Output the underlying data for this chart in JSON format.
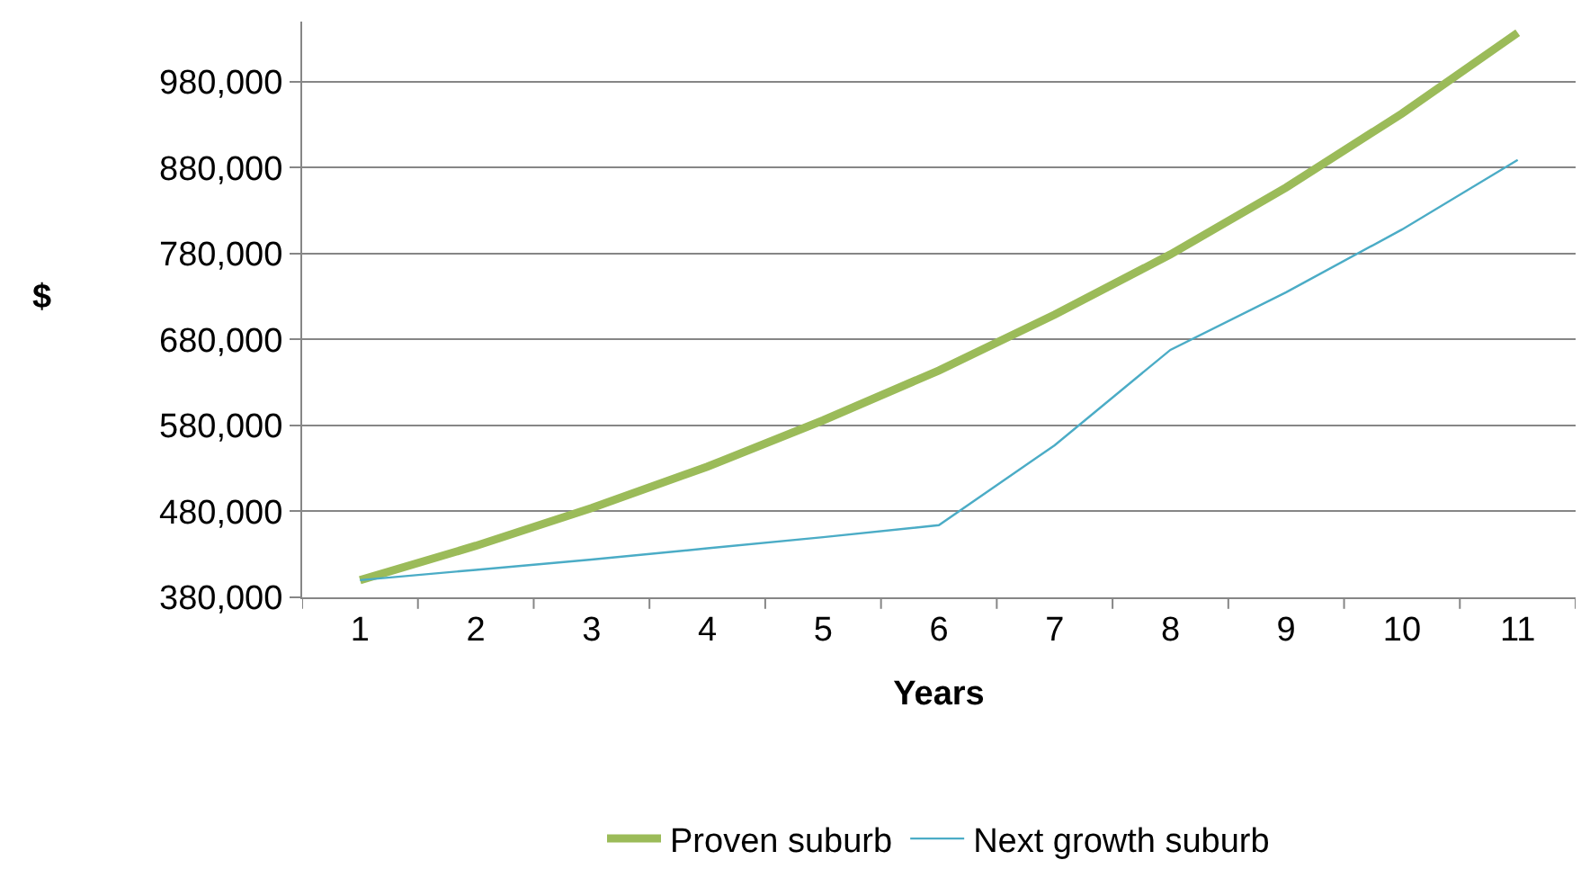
{
  "chart_data": {
    "type": "line",
    "xlabel": "Years",
    "ylabel": "$",
    "categories": [
      "1",
      "2",
      "3",
      "4",
      "5",
      "6",
      "7",
      "8",
      "9",
      "10",
      "11"
    ],
    "series": [
      {
        "name": "Proven suburb",
        "color": "#9bbb59",
        "values": [
          400000,
          440000,
          484000,
          532000,
          586000,
          644000,
          709000,
          779000,
          857000,
          943000,
          1037000
        ]
      },
      {
        "name": "Next growth suburb",
        "color": "#4bacc6",
        "values": [
          400000,
          412000,
          424000,
          437000,
          450000,
          464000,
          557000,
          668000,
          735000,
          808000,
          889000
        ]
      }
    ],
    "ylim": [
      380000,
      1050000
    ],
    "yticks": [
      {
        "value": 380000,
        "label": "380,000"
      },
      {
        "value": 480000,
        "label": "480,000"
      },
      {
        "value": 580000,
        "label": "580,000"
      },
      {
        "value": 680000,
        "label": "680,000"
      },
      {
        "value": 780000,
        "label": "780,000"
      },
      {
        "value": 880000,
        "label": "880,000"
      },
      {
        "value": 980000,
        "label": "980,000"
      }
    ],
    "grid": "y",
    "legend": "bottom",
    "marker": "none",
    "line_style": "solid"
  }
}
